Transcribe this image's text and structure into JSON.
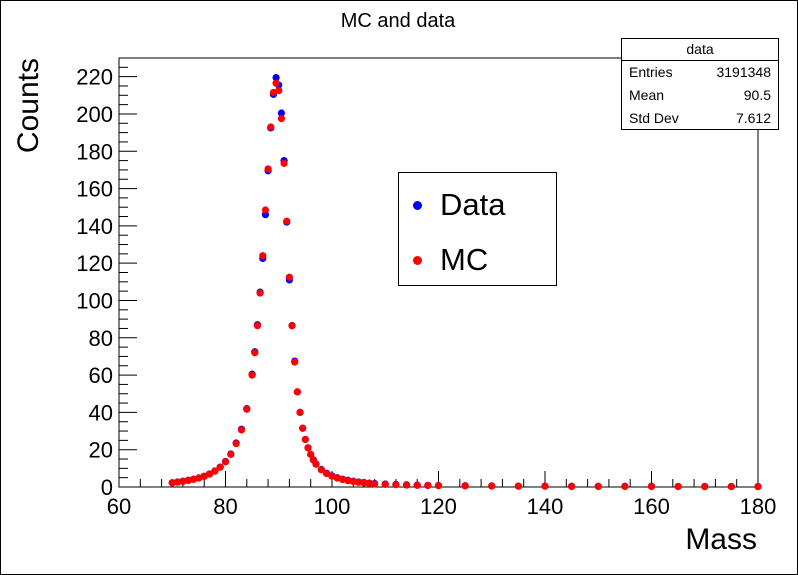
{
  "chart_data": {
    "type": "scatter",
    "title": "MC and data",
    "xlabel": "Mass",
    "ylabel": "Counts",
    "xlim": [
      60,
      180
    ],
    "ylim": [
      0,
      230
    ],
    "x_ticks": [
      60,
      80,
      100,
      120,
      140,
      160,
      180
    ],
    "y_ticks": [
      0,
      20,
      40,
      60,
      80,
      100,
      120,
      140,
      160,
      180,
      200,
      220
    ],
    "grid": false,
    "legend_position": "center-right",
    "stats_box": {
      "title": "data",
      "rows": [
        {
          "label": "Entries",
          "value": "3191348"
        },
        {
          "label": "Mean",
          "value": "90.5"
        },
        {
          "label": "Std Dev",
          "value": "7.612"
        }
      ]
    },
    "series": [
      {
        "name": "Data",
        "color": "#0000ff",
        "x": [
          70,
          71,
          72,
          73,
          74,
          75,
          76,
          77,
          78,
          79,
          80,
          81,
          82,
          83,
          84,
          85,
          85.5,
          86,
          86.5,
          87,
          87.5,
          88,
          88.5,
          89,
          89.5,
          90,
          90.5,
          91,
          91.5,
          92,
          92.5,
          93,
          93.5,
          94,
          94.5,
          95,
          95.5,
          96,
          96.5,
          97,
          98,
          99,
          100,
          101,
          102,
          103,
          104,
          105,
          106,
          107,
          108,
          110,
          112,
          114,
          116,
          118,
          120,
          125,
          130,
          135,
          140,
          145,
          150,
          155,
          160,
          165,
          170,
          175,
          180
        ],
        "y": [
          2.3,
          2.7,
          3.1,
          3.6,
          4.2,
          4.9,
          5.8,
          7.0,
          8.6,
          10.7,
          13.7,
          17.7,
          23.6,
          31.0,
          42.0,
          60.5,
          72.5,
          87.0,
          104.5,
          122.5,
          146.0,
          169.5,
          192.5,
          210.5,
          219.5,
          215.5,
          200.5,
          175.0,
          142.0,
          111.0,
          86.5,
          67.5,
          51.0,
          40.0,
          31.5,
          25.5,
          21.0,
          17.5,
          14.6,
          12.4,
          9.4,
          7.4,
          6.0,
          5.0,
          4.2,
          3.6,
          3.1,
          2.7,
          2.4,
          2.1,
          1.9,
          1.6,
          1.4,
          1.2,
          1.0,
          0.9,
          0.8,
          0.7,
          0.6,
          0.5,
          0.5,
          0.4,
          0.4,
          0.4,
          0.4,
          0.3,
          0.3,
          0.3,
          0.3
        ]
      },
      {
        "name": "MC",
        "color": "#ff0000",
        "x": [
          70,
          71,
          72,
          73,
          74,
          75,
          76,
          77,
          78,
          79,
          80,
          81,
          82,
          83,
          84,
          85,
          85.5,
          86,
          86.5,
          87,
          87.5,
          88,
          88.5,
          89,
          89.5,
          90,
          90.5,
          91,
          91.5,
          92,
          92.5,
          93,
          93.5,
          94,
          94.5,
          95,
          95.5,
          96,
          96.5,
          97,
          98,
          99,
          100,
          101,
          102,
          103,
          104,
          105,
          106,
          107,
          108,
          110,
          112,
          114,
          116,
          118,
          120,
          125,
          130,
          135,
          140,
          145,
          150,
          155,
          160,
          165,
          170,
          175,
          180
        ],
        "y": [
          2.2,
          2.6,
          3.0,
          3.5,
          4.1,
          4.8,
          5.7,
          6.9,
          8.5,
          10.6,
          13.5,
          17.5,
          23.3,
          30.6,
          41.7,
          60.0,
          72.0,
          86.5,
          104.0,
          124.0,
          148.5,
          170.5,
          193.0,
          211.5,
          216.5,
          212.5,
          197.5,
          173.5,
          142.5,
          112.5,
          86.5,
          67.0,
          51.0,
          40.0,
          31.5,
          25.5,
          21.0,
          17.5,
          14.5,
          12.2,
          9.2,
          7.2,
          5.8,
          4.8,
          4.0,
          3.4,
          2.9,
          2.5,
          2.2,
          1.9,
          1.7,
          1.4,
          1.2,
          1.0,
          0.9,
          0.8,
          0.7,
          0.6,
          0.5,
          0.4,
          0.4,
          0.3,
          0.3,
          0.3,
          0.3,
          0.3,
          0.2,
          0.2,
          0.2
        ]
      }
    ]
  }
}
